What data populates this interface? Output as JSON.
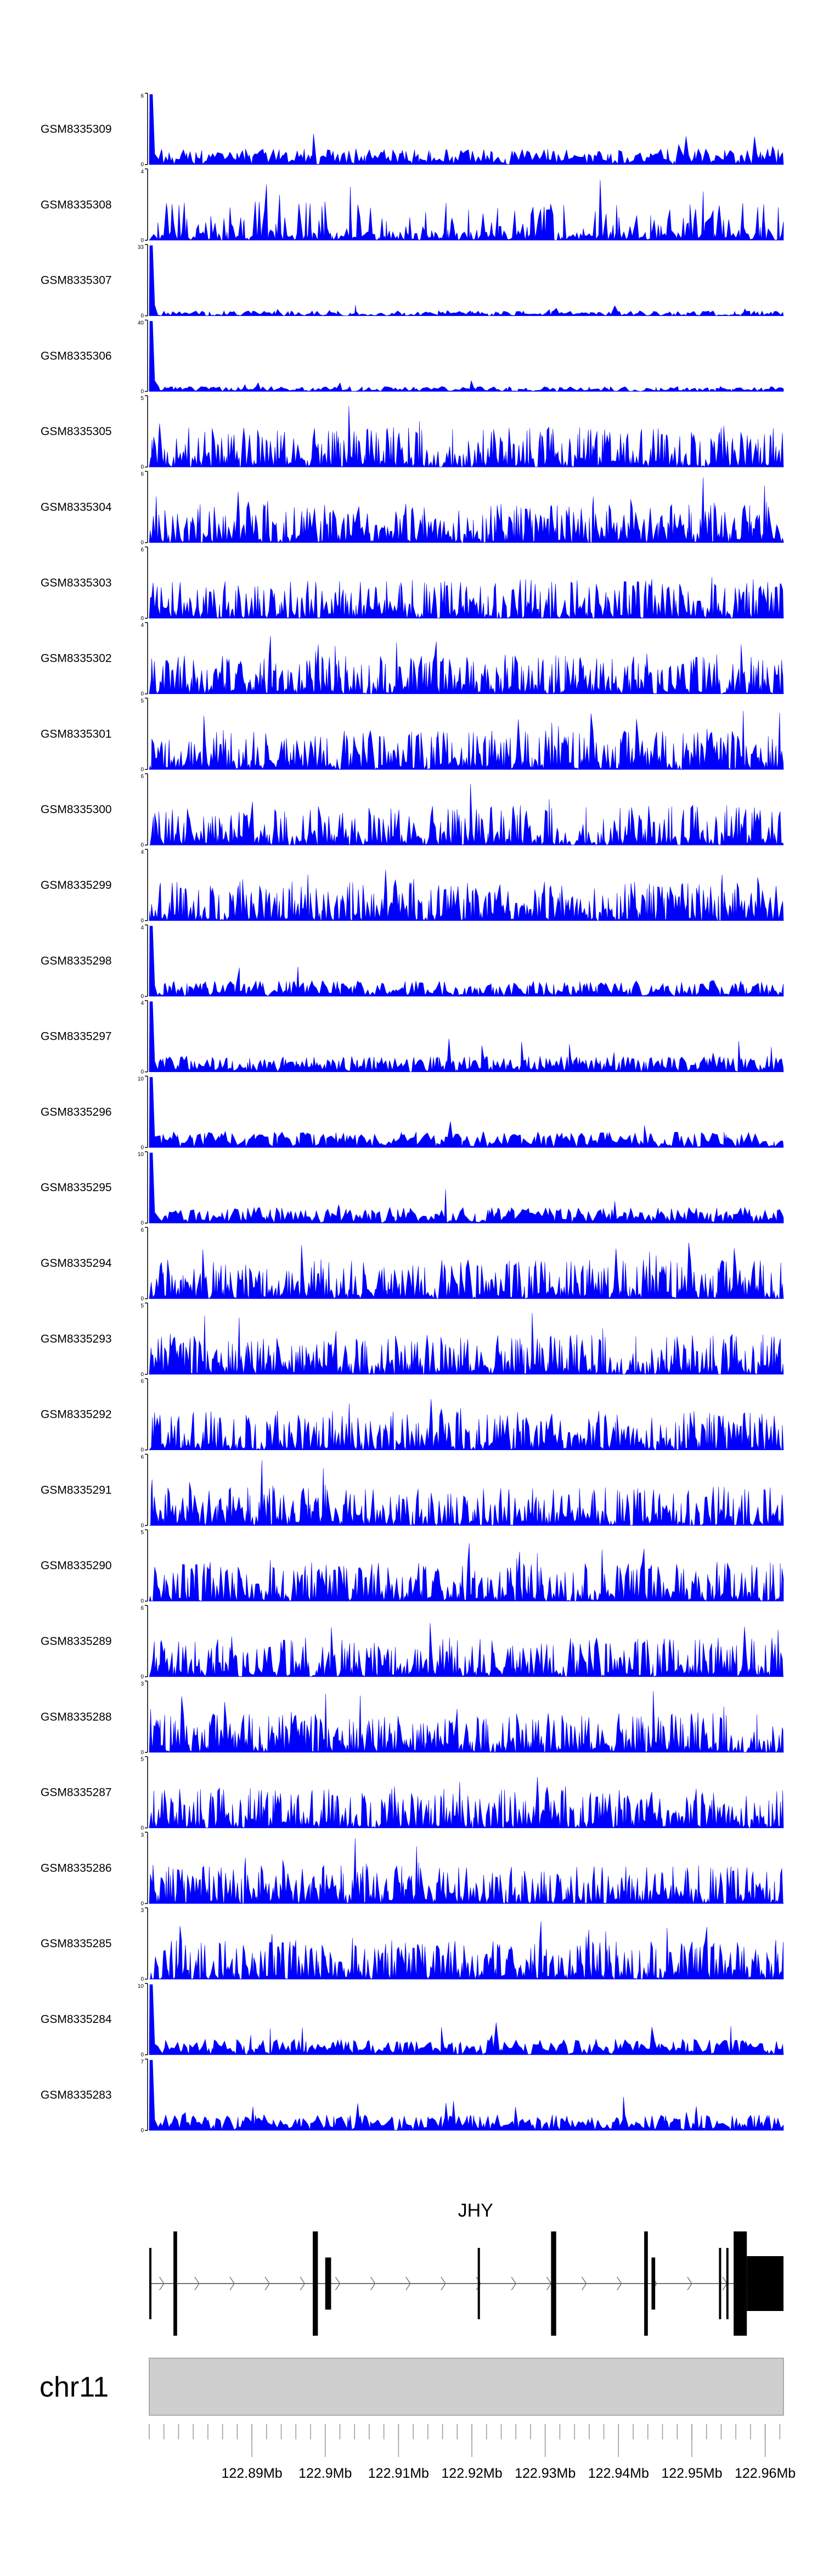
{
  "chart_data": {
    "type": "area",
    "x_range": [
      122.876,
      122.9625
    ],
    "x_unit": "Mb",
    "fill_color": "#0000ff",
    "tracks": [
      {
        "name": "GSM8335309",
        "ymax": "6",
        "ymin": "0",
        "peak_at_start": true,
        "density": 0.45
      },
      {
        "name": "GSM8335308",
        "ymax": "4",
        "ymin": "0",
        "peak_at_start": false,
        "density": 0.6
      },
      {
        "name": "GSM8335307",
        "ymax": "33",
        "ymin": "0",
        "peak_at_start": true,
        "density": 0.2
      },
      {
        "name": "GSM8335306",
        "ymax": "40",
        "ymin": "0",
        "peak_at_start": true,
        "density": 0.15
      },
      {
        "name": "GSM8335305",
        "ymax": "5",
        "ymin": "0",
        "peak_at_start": false,
        "density": 0.9
      },
      {
        "name": "GSM8335304",
        "ymax": "6",
        "ymin": "0",
        "peak_at_start": false,
        "density": 0.85
      },
      {
        "name": "GSM8335303",
        "ymax": "6",
        "ymin": "0",
        "peak_at_start": false,
        "density": 0.85
      },
      {
        "name": "GSM8335302",
        "ymax": "4",
        "ymin": "0",
        "peak_at_start": false,
        "density": 0.9
      },
      {
        "name": "GSM8335301",
        "ymax": "5",
        "ymin": "0",
        "peak_at_start": false,
        "density": 0.85
      },
      {
        "name": "GSM8335300",
        "ymax": "6",
        "ymin": "0",
        "peak_at_start": false,
        "density": 0.8
      },
      {
        "name": "GSM8335299",
        "ymax": "4",
        "ymin": "0",
        "peak_at_start": false,
        "density": 0.9
      },
      {
        "name": "GSM8335298",
        "ymax": "4",
        "ymin": "0",
        "peak_at_start": true,
        "density": 0.55
      },
      {
        "name": "GSM8335297",
        "ymax": "4",
        "ymin": "0",
        "peak_at_start": true,
        "density": 0.65
      },
      {
        "name": "GSM8335296",
        "ymax": "10",
        "ymin": "0",
        "peak_at_start": true,
        "density": 0.3
      },
      {
        "name": "GSM8335295",
        "ymax": "10",
        "ymin": "0",
        "peak_at_start": true,
        "density": 0.35
      },
      {
        "name": "GSM8335294",
        "ymax": "6",
        "ymin": "0",
        "peak_at_start": false,
        "density": 0.85
      },
      {
        "name": "GSM8335293",
        "ymax": "5",
        "ymin": "0",
        "peak_at_start": false,
        "density": 0.9
      },
      {
        "name": "GSM8335292",
        "ymax": "6",
        "ymin": "0",
        "peak_at_start": false,
        "density": 0.85
      },
      {
        "name": "GSM8335291",
        "ymax": "6",
        "ymin": "0",
        "peak_at_start": false,
        "density": 0.85
      },
      {
        "name": "GSM8335290",
        "ymax": "5",
        "ymin": "0",
        "peak_at_start": false,
        "density": 0.85
      },
      {
        "name": "GSM8335289",
        "ymax": "6",
        "ymin": "0",
        "peak_at_start": false,
        "density": 0.85
      },
      {
        "name": "GSM8335288",
        "ymax": "3",
        "ymin": "0",
        "peak_at_start": false,
        "density": 0.9
      },
      {
        "name": "GSM8335287",
        "ymax": "5",
        "ymin": "0",
        "peak_at_start": false,
        "density": 0.9
      },
      {
        "name": "GSM8335286",
        "ymax": "3",
        "ymin": "0",
        "peak_at_start": false,
        "density": 0.85
      },
      {
        "name": "GSM8335285",
        "ymax": "3",
        "ymin": "0",
        "peak_at_start": false,
        "density": 0.9
      },
      {
        "name": "GSM8335284",
        "ymax": "10",
        "ymin": "0",
        "peak_at_start": true,
        "density": 0.35
      },
      {
        "name": "GSM8335283",
        "ymax": "7",
        "ymin": "0",
        "peak_at_start": true,
        "density": 0.4
      }
    ],
    "gene_track": {
      "gene_name": "JHY",
      "strand": "+",
      "exons": [
        {
          "start": 122.876,
          "end": 122.8763,
          "thick": false
        },
        {
          "start": 122.8793,
          "end": 122.8798,
          "thick": true
        },
        {
          "start": 122.8983,
          "end": 122.899,
          "thick": true
        },
        {
          "start": 122.9,
          "end": 122.9008,
          "thick": true
        },
        {
          "start": 122.9208,
          "end": 122.9211,
          "thick": false
        },
        {
          "start": 122.9308,
          "end": 122.9315,
          "thick": true
        },
        {
          "start": 122.9435,
          "end": 122.944,
          "thick": true
        },
        {
          "start": 122.9445,
          "end": 122.945,
          "thick": true
        },
        {
          "start": 122.9537,
          "end": 122.954,
          "thick": false
        },
        {
          "start": 122.9547,
          "end": 122.955,
          "thick": false
        },
        {
          "start": 122.9557,
          "end": 122.9575,
          "thick": true
        },
        {
          "start": 122.9575,
          "end": 122.9625,
          "thick": true
        }
      ]
    },
    "chromosome": "chr11",
    "axis_ticks": [
      {
        "value": 122.89,
        "label": "122.89Mb"
      },
      {
        "value": 122.9,
        "label": "122.9Mb"
      },
      {
        "value": 122.91,
        "label": "122.91Mb"
      },
      {
        "value": 122.92,
        "label": "122.92Mb"
      },
      {
        "value": 122.93,
        "label": "122.93Mb"
      },
      {
        "value": 122.94,
        "label": "122.94Mb"
      },
      {
        "value": 122.95,
        "label": "122.95Mb"
      },
      {
        "value": 122.96,
        "label": "122.96Mb"
      }
    ],
    "minor_tick_step": 0.002
  }
}
